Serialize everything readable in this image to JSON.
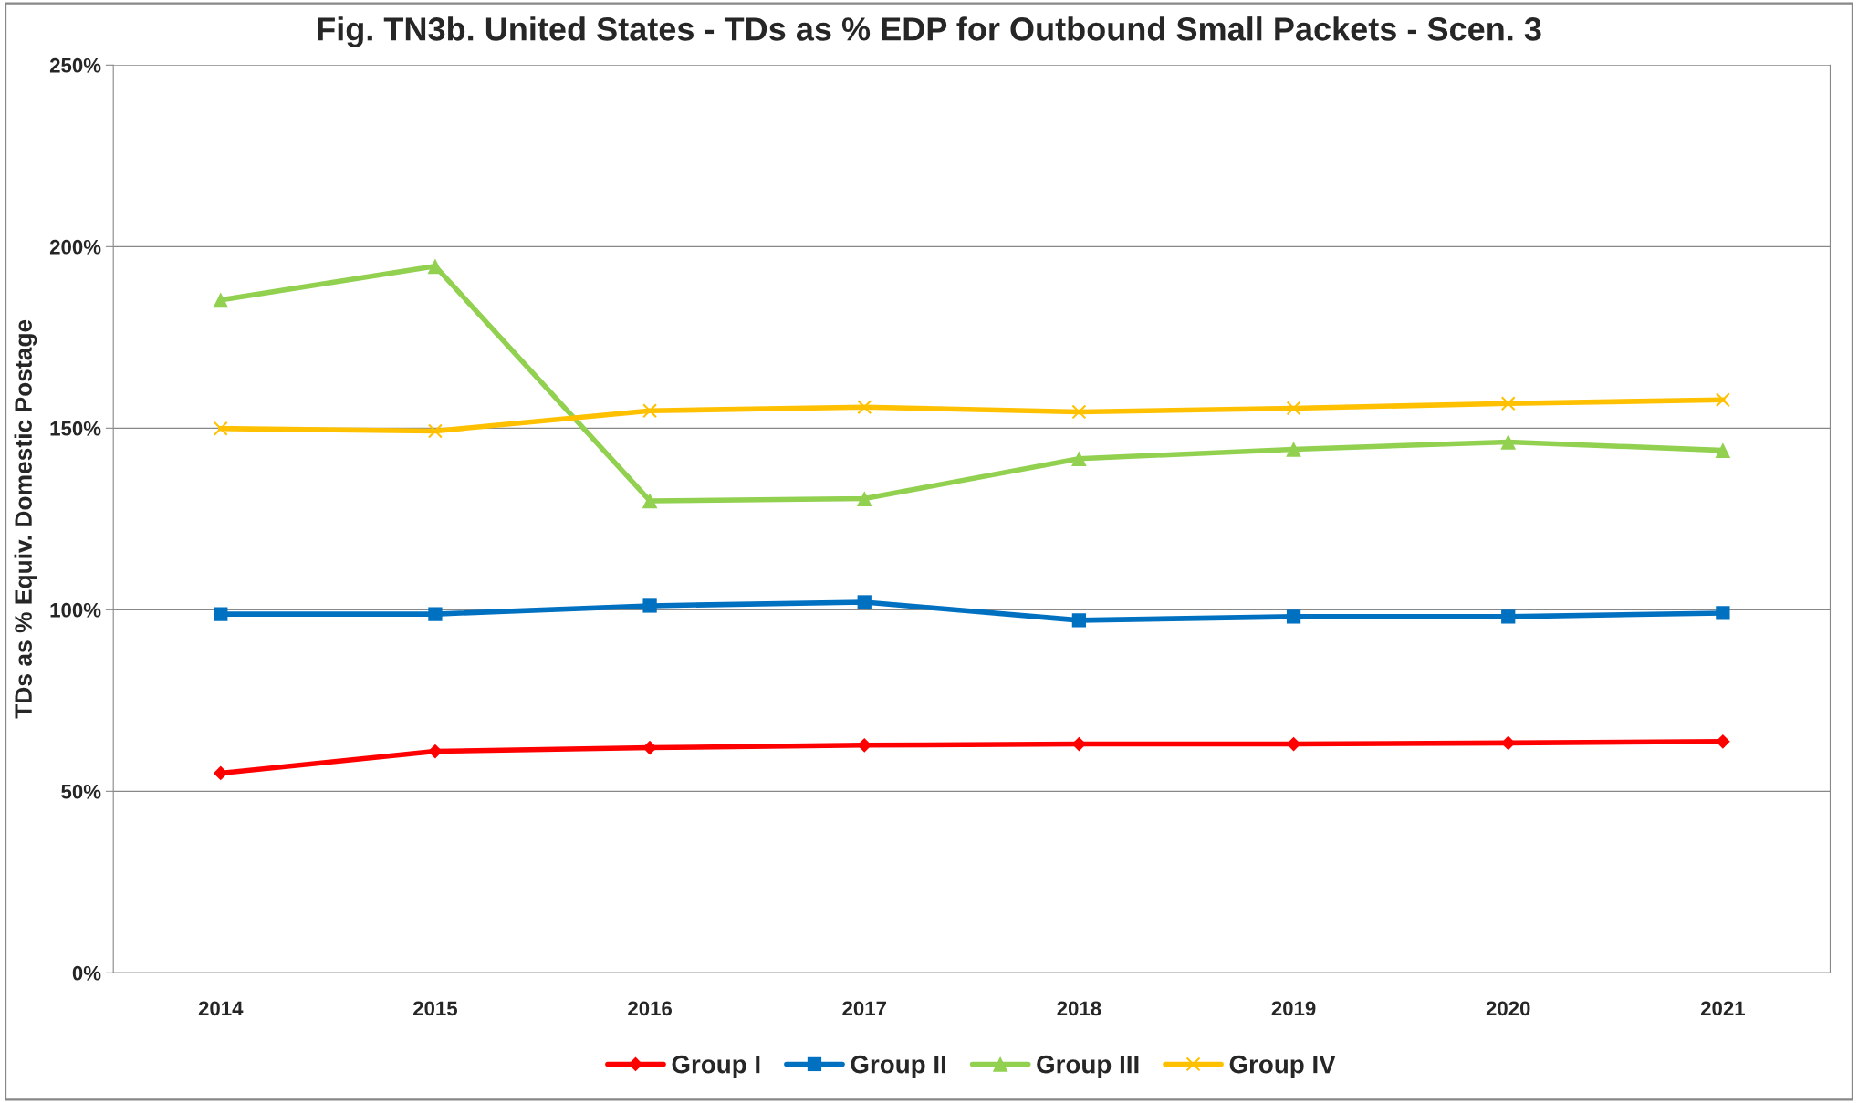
{
  "chart_data": {
    "type": "line",
    "title": "Fig. TN3b. United States - TDs as % EDP for Outbound Small Packets - Scen. 3",
    "ylabel": "TDs as % Equiv. Domestic Postage",
    "categories": [
      "2014",
      "2015",
      "2016",
      "2017",
      "2018",
      "2019",
      "2020",
      "2021"
    ],
    "series": [
      {
        "name": "Group I",
        "color": "#ff0000",
        "marker": "diamond",
        "values": [
          55,
          61,
          62,
          62.7,
          63,
          63,
          63.3,
          63.7
        ]
      },
      {
        "name": "Group II",
        "color": "#0070c0",
        "marker": "square",
        "values": [
          98.8,
          98.8,
          101.1,
          102.1,
          97.1,
          98.1,
          98.1,
          99.1
        ]
      },
      {
        "name": "Group III",
        "color": "#92d050",
        "marker": "triangle",
        "values": [
          185.3,
          194.6,
          130,
          130.6,
          141.6,
          144.2,
          146.2,
          143.9
        ]
      },
      {
        "name": "Group IV",
        "color": "#ffc000",
        "marker": "cross",
        "values": [
          149.9,
          149.2,
          154.8,
          155.8,
          154.5,
          155.5,
          156.8,
          157.8
        ]
      }
    ],
    "ylim": [
      0,
      250
    ],
    "yticks": [
      {
        "value": 0,
        "label": "0%"
      },
      {
        "value": 50,
        "label": "50%"
      },
      {
        "value": 100,
        "label": "100%"
      },
      {
        "value": 150,
        "label": "150%"
      },
      {
        "value": 200,
        "label": "200%"
      },
      {
        "value": 250,
        "label": "250%"
      }
    ],
    "grid": "y",
    "legend": "bottom",
    "line_style": "solid"
  }
}
